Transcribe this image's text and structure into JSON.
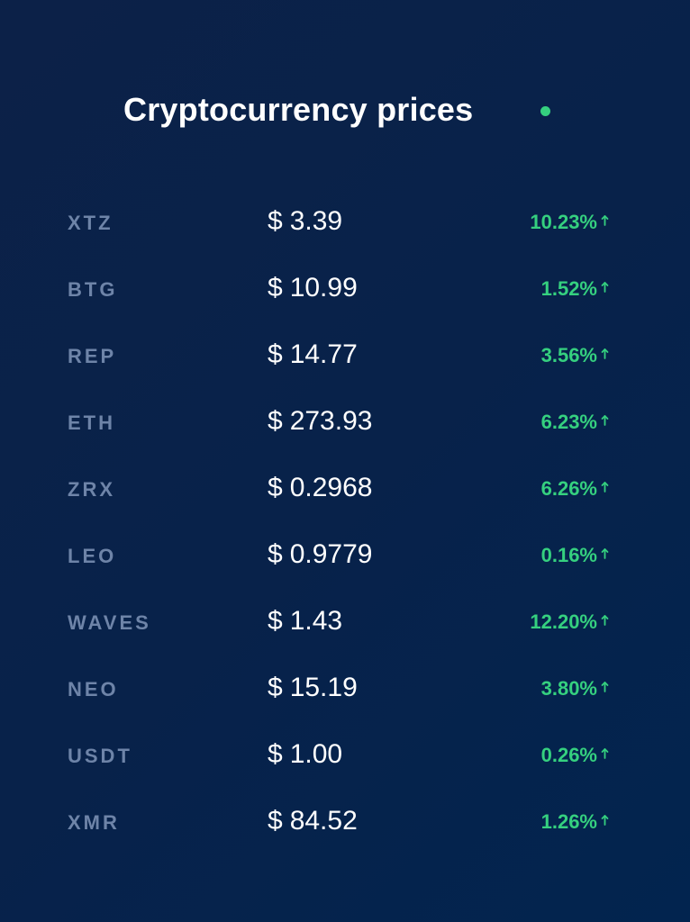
{
  "header": {
    "title": "Cryptocurrency prices",
    "live_indicator_color": "#35d07f"
  },
  "currency_symbol": "$",
  "colors": {
    "background": "#082249",
    "symbol_text": "#6e84a8",
    "price_text": "#ffffff",
    "change_up": "#35d07f"
  },
  "rows": [
    {
      "symbol": "XTZ",
      "price": "3.39",
      "change": "10.23%",
      "direction": "up"
    },
    {
      "symbol": "BTG",
      "price": "10.99",
      "change": "1.52%",
      "direction": "up"
    },
    {
      "symbol": "REP",
      "price": "14.77",
      "change": "3.56%",
      "direction": "up"
    },
    {
      "symbol": "ETH",
      "price": "273.93",
      "change": "6.23%",
      "direction": "up"
    },
    {
      "symbol": "ZRX",
      "price": "0.2968",
      "change": "6.26%",
      "direction": "up"
    },
    {
      "symbol": "LEO",
      "price": "0.9779",
      "change": "0.16%",
      "direction": "up"
    },
    {
      "symbol": "WAVES",
      "price": "1.43",
      "change": "12.20%",
      "direction": "up"
    },
    {
      "symbol": "NEO",
      "price": "15.19",
      "change": "3.80%",
      "direction": "up"
    },
    {
      "symbol": "USDT",
      "price": "1.00",
      "change": "0.26%",
      "direction": "up"
    },
    {
      "symbol": "XMR",
      "price": "84.52",
      "change": "1.26%",
      "direction": "up"
    }
  ]
}
